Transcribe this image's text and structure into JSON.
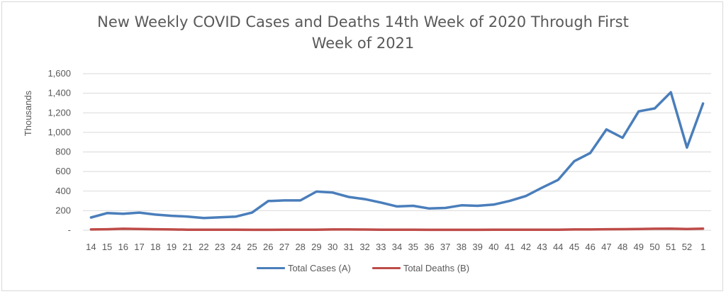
{
  "chart_data": {
    "type": "line",
    "title_lines": [
      "New Weekly COVID Cases and Deaths  14th Week of 2020 Through First",
      "Week of 2021"
    ],
    "xlabel": "",
    "ylabel": "Thousands",
    "ylim": [
      0,
      1600
    ],
    "yticks": [
      0,
      200,
      400,
      600,
      800,
      1000,
      1200,
      1400,
      1600
    ],
    "ytick_labels": [
      "-",
      "200",
      "400",
      "600",
      "800",
      "1,000",
      "1,200",
      "1,400",
      "1,600"
    ],
    "categories": [
      "14",
      "15",
      "16",
      "17",
      "18",
      "19",
      "21",
      "22",
      "23",
      "24",
      "25",
      "26",
      "27",
      "28",
      "29",
      "30",
      "31",
      "32",
      "33",
      "34",
      "35",
      "36",
      "37",
      "38",
      "39",
      "40",
      "41",
      "42",
      "43",
      "44",
      "45",
      "46",
      "47",
      "48",
      "49",
      "50",
      "51",
      "52",
      "1"
    ],
    "grid": true,
    "legend_position": "bottom",
    "series": [
      {
        "name": "Total Cases (A)",
        "color": "#4a7ebb",
        "values": [
          130,
          175,
          168,
          180,
          160,
          148,
          140,
          125,
          132,
          140,
          180,
          298,
          305,
          305,
          395,
          385,
          340,
          318,
          283,
          243,
          250,
          222,
          228,
          255,
          250,
          262,
          300,
          350,
          435,
          515,
          705,
          790,
          1030,
          945,
          1215,
          1245,
          1410,
          845,
          1295
        ]
      },
      {
        "name": "Total Deaths (B)",
        "color": "#be4b48",
        "values": [
          8,
          10,
          15,
          12,
          10,
          8,
          6,
          5,
          5,
          5,
          4,
          4,
          5,
          5,
          6,
          8,
          8,
          7,
          6,
          5,
          5,
          4,
          4,
          4,
          4,
          5,
          5,
          5,
          6,
          6,
          8,
          8,
          10,
          11,
          12,
          15,
          16,
          12,
          17
        ]
      }
    ]
  }
}
